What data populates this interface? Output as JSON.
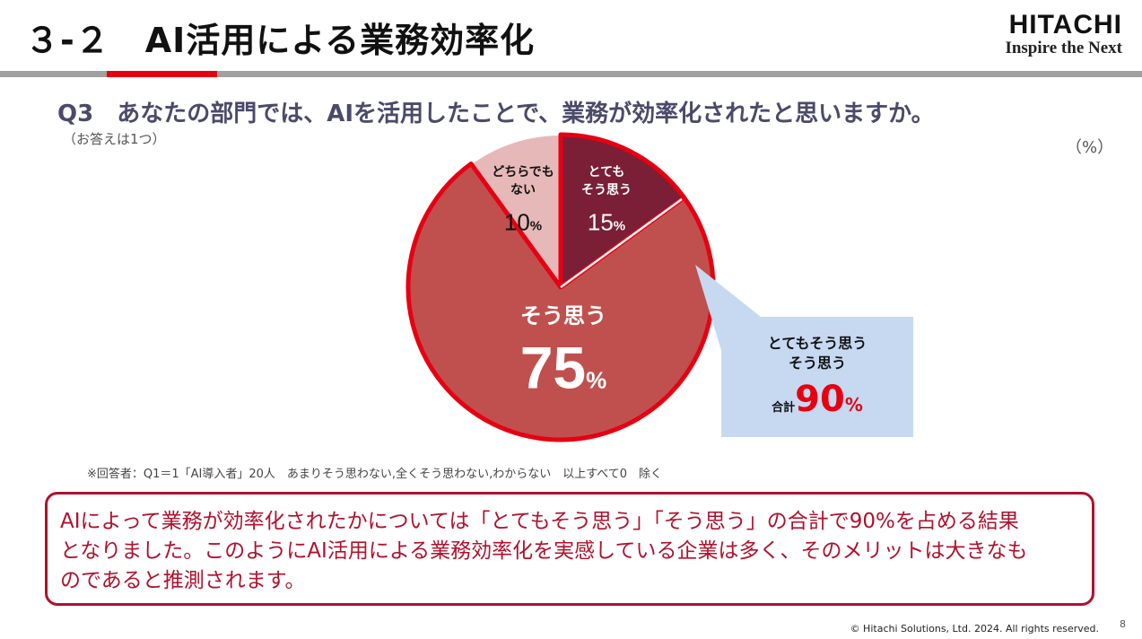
{
  "slide": {
    "title": "３-２　AI活用による業務効率化",
    "logo_main": "HITACHI",
    "logo_sub": "Inspire the Next"
  },
  "question": {
    "text": "Q3　あなたの部門では、AIを活用したことで、業務が効率化されたと思いますか。",
    "note": "（お答えは1つ）"
  },
  "unit_label": "（%）",
  "chart_data": {
    "type": "pie",
    "start_angle_deg": 0,
    "direction": "clockwise",
    "slices": [
      {
        "label_lines": [
          "とても",
          "そう思う"
        ],
        "value": 15,
        "unit": "%",
        "color": "#7a1f35",
        "label_color": "#ffffff"
      },
      {
        "label_lines": [
          "そう思う"
        ],
        "value": 75,
        "unit": "%",
        "color": "#c0504d",
        "label_color": "#ffffff"
      },
      {
        "label_lines": [
          "どちらでも",
          "ない"
        ],
        "value": 10,
        "unit": "%",
        "color": "#e6b9b8",
        "label_color": "#111111"
      }
    ],
    "highlight_color": "#e60012",
    "highlight_slices": [
      0,
      1
    ]
  },
  "callout": {
    "line1": "とてもそう思う",
    "line2": "そう思う",
    "total_label": "合計",
    "total_value": "90",
    "total_unit": "%"
  },
  "footnote": "※回答者：Q1＝1「AI導入者」20人　あまりそう思わない,全くそう思わない,わからない　以上すべて0　除く",
  "summary": {
    "line1": "AIによって業務が効率化されたかについては「とてもそう思う」「そう思う」の合計で90%を占める結果",
    "line2": "となりました。このようにAI活用による業務効率化を実感している企業は多く、そのメリットは大きなも",
    "line3": "のであると推測されます。"
  },
  "footer": {
    "copyright": "© Hitachi Solutions, Ltd. 2024. All rights reserved.",
    "page": "8"
  }
}
